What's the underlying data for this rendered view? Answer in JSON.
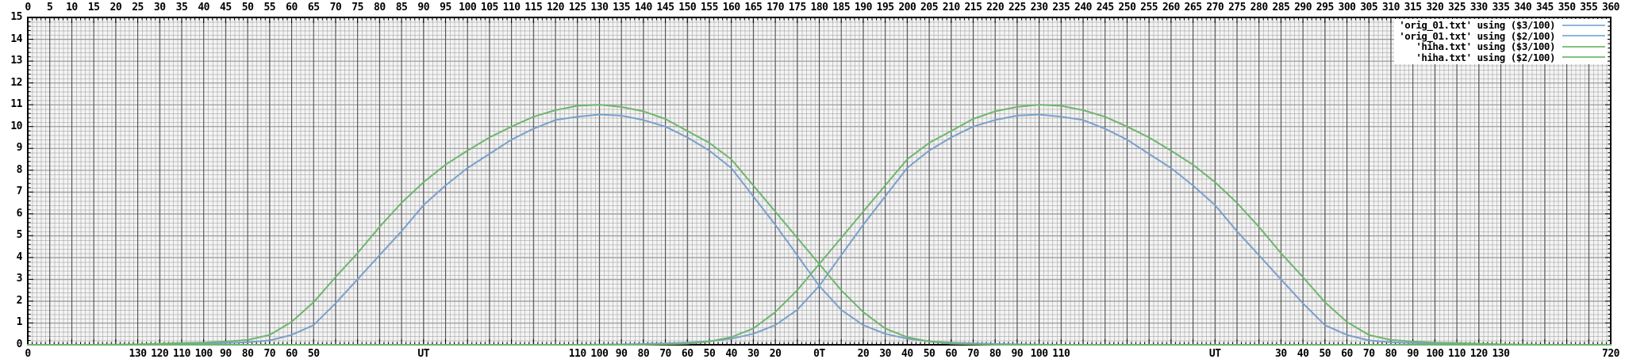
{
  "legend": {
    "position": "top-right",
    "entries": [
      {
        "label": "'orig_01.txt' using ($3/100)",
        "color": "#8fb4d9"
      },
      {
        "label": "'orig_01.txt' using ($2/100)",
        "color": "#8fb4d9"
      },
      {
        "label": "'hiha.txt' using ($3/100)",
        "color": "#82c282"
      },
      {
        "label": "'hiha.txt' using ($2/100)",
        "color": "#82c282"
      }
    ]
  },
  "colors": {
    "blue_curve": "#7aa0cb",
    "green_curve": "#6fb56f",
    "x_major_grid": "#4f4f4f",
    "y_major_grid": "#9b9b9b",
    "border": "#000000",
    "text": "#000000"
  },
  "chart_data": {
    "type": "line",
    "title": "",
    "xlabel": "",
    "ylabel": "",
    "grid": "dense (x minor every 1, x major every 5, y minor every 0.2, y major every 1)",
    "x_top_axis": {
      "min": 0,
      "max": 360,
      "label_step": 5,
      "labels": [
        0,
        5,
        10,
        15,
        20,
        25,
        30,
        35,
        40,
        45,
        50,
        55,
        60,
        65,
        70,
        75,
        80,
        85,
        90,
        95,
        100,
        105,
        110,
        115,
        120,
        125,
        130,
        135,
        140,
        145,
        150,
        155,
        160,
        165,
        170,
        175,
        180,
        185,
        190,
        195,
        200,
        205,
        210,
        215,
        220,
        225,
        230,
        235,
        240,
        245,
        250,
        255,
        260,
        265,
        270,
        275,
        280,
        285,
        290,
        295,
        300,
        305,
        310,
        315,
        320,
        325,
        330,
        335,
        340,
        345,
        350,
        355,
        360
      ]
    },
    "y_axis": {
      "min": 0,
      "max": 15,
      "step": 1,
      "labels": [
        0,
        1,
        2,
        3,
        4,
        5,
        6,
        7,
        8,
        9,
        10,
        11,
        12,
        13,
        14,
        15
      ]
    },
    "x_bottom_axis": {
      "ticks": [
        {
          "pos": 0,
          "label": "0"
        },
        {
          "pos": 25,
          "label": "130"
        },
        {
          "pos": 30,
          "label": "120"
        },
        {
          "pos": 35,
          "label": "110"
        },
        {
          "pos": 40,
          "label": "100"
        },
        {
          "pos": 45,
          "label": "90"
        },
        {
          "pos": 50,
          "label": "80"
        },
        {
          "pos": 55,
          "label": "70"
        },
        {
          "pos": 60,
          "label": "60"
        },
        {
          "pos": 65,
          "label": "50"
        },
        {
          "pos": 90,
          "label": "UT"
        },
        {
          "pos": 125,
          "label": "110"
        },
        {
          "pos": 130,
          "label": "100"
        },
        {
          "pos": 135,
          "label": "90"
        },
        {
          "pos": 140,
          "label": "80"
        },
        {
          "pos": 145,
          "label": "70"
        },
        {
          "pos": 150,
          "label": "60"
        },
        {
          "pos": 155,
          "label": "50"
        },
        {
          "pos": 160,
          "label": "40"
        },
        {
          "pos": 165,
          "label": "30"
        },
        {
          "pos": 170,
          "label": "20"
        },
        {
          "pos": 180,
          "label": "0T"
        },
        {
          "pos": 190,
          "label": "20"
        },
        {
          "pos": 195,
          "label": "30"
        },
        {
          "pos": 200,
          "label": "40"
        },
        {
          "pos": 205,
          "label": "50"
        },
        {
          "pos": 210,
          "label": "60"
        },
        {
          "pos": 215,
          "label": "70"
        },
        {
          "pos": 220,
          "label": "80"
        },
        {
          "pos": 225,
          "label": "90"
        },
        {
          "pos": 230,
          "label": "100"
        },
        {
          "pos": 235,
          "label": "110"
        },
        {
          "pos": 270,
          "label": "UT"
        },
        {
          "pos": 285,
          "label": "30"
        },
        {
          "pos": 290,
          "label": "40"
        },
        {
          "pos": 295,
          "label": "50"
        },
        {
          "pos": 300,
          "label": "60"
        },
        {
          "pos": 305,
          "label": "70"
        },
        {
          "pos": 310,
          "label": "80"
        },
        {
          "pos": 315,
          "label": "90"
        },
        {
          "pos": 320,
          "label": "100"
        },
        {
          "pos": 325,
          "label": "110"
        },
        {
          "pos": 330,
          "label": "120"
        },
        {
          "pos": 335,
          "label": "130"
        },
        {
          "pos": 360,
          "label": "720"
        }
      ]
    },
    "x_start": 0,
    "x_step": 5,
    "series": [
      {
        "name": "'orig_01.txt' using ($3/100)",
        "color": "#7aa0cb",
        "values": [
          0,
          0,
          0,
          0,
          0,
          0,
          0,
          0.02,
          0.05,
          0.08,
          0.12,
          0.2,
          0.45,
          0.9,
          1.9,
          3,
          4.1,
          5.2,
          6.4,
          7.3,
          8.1,
          8.75,
          9.4,
          9.9,
          10.3,
          10.45,
          10.55,
          10.5,
          10.3,
          10,
          9.5,
          8.9,
          8.1,
          6.8,
          5.5,
          4.1,
          2.7,
          1.6,
          0.9,
          0.5,
          0.28,
          0.16,
          0.1,
          0.06,
          0.04,
          0.02,
          0.01,
          0,
          0,
          0,
          0,
          0,
          0,
          0,
          0,
          0,
          0,
          0,
          0,
          0,
          0,
          0,
          0,
          0,
          0,
          0,
          0,
          0,
          0,
          0,
          0,
          0,
          0
        ]
      },
      {
        "name": "'orig_01.txt' using ($2/100)",
        "color": "#7aa0cb",
        "values": [
          0,
          0,
          0,
          0,
          0,
          0,
          0,
          0,
          0,
          0,
          0,
          0,
          0,
          0,
          0,
          0,
          0,
          0,
          0,
          0,
          0,
          0,
          0,
          0,
          0,
          0,
          0.01,
          0.02,
          0.04,
          0.06,
          0.1,
          0.16,
          0.28,
          0.5,
          0.9,
          1.6,
          2.7,
          4.1,
          5.5,
          6.8,
          8.1,
          8.9,
          9.5,
          10,
          10.3,
          10.5,
          10.55,
          10.45,
          10.3,
          9.9,
          9.4,
          8.75,
          8.1,
          7.3,
          6.4,
          5.2,
          4.1,
          3,
          1.9,
          0.9,
          0.45,
          0.2,
          0.12,
          0.08,
          0.05,
          0.02,
          0,
          0,
          0,
          0,
          0,
          0,
          0
        ]
      },
      {
        "name": "'hiha.txt' using ($3/100)",
        "color": "#6fb56f",
        "values": [
          0,
          0,
          0,
          0,
          0.01,
          0.02,
          0.05,
          0.08,
          0.1,
          0.15,
          0.22,
          0.45,
          1.05,
          1.95,
          3.1,
          4.2,
          5.4,
          6.5,
          7.45,
          8.25,
          8.9,
          9.5,
          10,
          10.45,
          10.75,
          10.95,
          11,
          10.9,
          10.7,
          10.35,
          9.8,
          9.25,
          8.5,
          7.3,
          6.1,
          4.9,
          3.7,
          2.5,
          1.5,
          0.75,
          0.35,
          0.15,
          0.05,
          0.02,
          0,
          0,
          0,
          0,
          0,
          0,
          0,
          0,
          0,
          0,
          0,
          0,
          0,
          0,
          0,
          0,
          0,
          0,
          0,
          0,
          0,
          0,
          0,
          0,
          0,
          0,
          0,
          0,
          0
        ]
      },
      {
        "name": "'hiha.txt' using ($2/100)",
        "color": "#6fb56f",
        "values": [
          0,
          0,
          0,
          0,
          0,
          0,
          0,
          0,
          0,
          0,
          0,
          0,
          0,
          0,
          0,
          0,
          0,
          0,
          0,
          0,
          0,
          0,
          0,
          0,
          0,
          0,
          0,
          0,
          0,
          0.02,
          0.05,
          0.15,
          0.35,
          0.75,
          1.5,
          2.5,
          3.7,
          4.9,
          6.1,
          7.3,
          8.5,
          9.25,
          9.8,
          10.35,
          10.7,
          10.9,
          11,
          10.95,
          10.75,
          10.45,
          10,
          9.5,
          8.9,
          8.25,
          7.45,
          6.5,
          5.4,
          4.2,
          3.1,
          1.95,
          1.05,
          0.45,
          0.22,
          0.15,
          0.1,
          0.08,
          0.05,
          0.02,
          0.01,
          0,
          0,
          0,
          0
        ]
      }
    ]
  }
}
